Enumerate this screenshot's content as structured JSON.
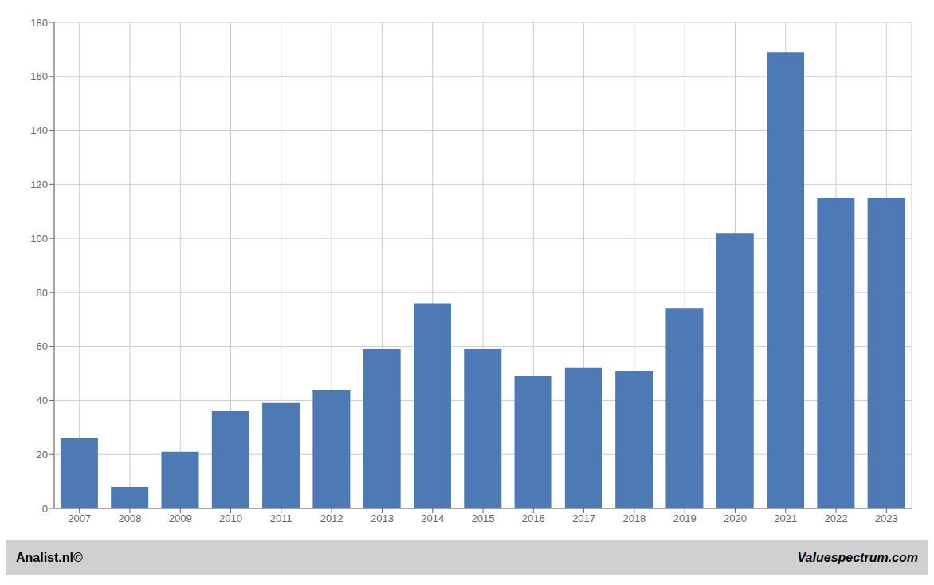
{
  "chart_data": {
    "type": "bar",
    "categories": [
      "2007",
      "2008",
      "2009",
      "2010",
      "2011",
      "2012",
      "2013",
      "2014",
      "2015",
      "2016",
      "2017",
      "2018",
      "2019",
      "2020",
      "2021",
      "2022",
      "2023"
    ],
    "values": [
      26,
      8,
      21,
      36,
      39,
      44,
      59,
      76,
      59,
      49,
      52,
      51,
      74,
      102,
      169,
      115,
      115
    ],
    "color": "#4d7ab5",
    "ylim": [
      0,
      180
    ],
    "yticks": [
      0,
      20,
      40,
      60,
      80,
      100,
      120,
      140,
      160,
      180
    ],
    "grid": true,
    "annotations": [
      "Analist.nl©",
      "Valuespectrum.com"
    ]
  }
}
